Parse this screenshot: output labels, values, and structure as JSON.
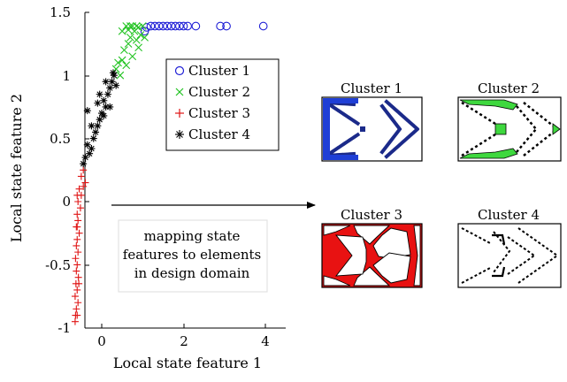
{
  "chart_data": {
    "type": "scatter",
    "xlabel": "Local state feature 1",
    "ylabel": "Local state feature 2",
    "xlim": [
      -1,
      4.4
    ],
    "ylim": [
      -1,
      1.5
    ],
    "xticks": [
      "0",
      "2",
      "4"
    ],
    "yticks": [
      "1.5",
      "1",
      "0.5",
      "0",
      "-0.5",
      "-1"
    ],
    "grid": false,
    "legend": "top-right",
    "series": [
      {
        "name": "Cluster 1",
        "marker": "circle",
        "color": "#1f1fd6",
        "points": [
          [
            1.05,
            1.35
          ],
          [
            1.1,
            1.38
          ],
          [
            1.2,
            1.39
          ],
          [
            1.3,
            1.39
          ],
          [
            1.4,
            1.39
          ],
          [
            1.5,
            1.39
          ],
          [
            1.6,
            1.39
          ],
          [
            1.7,
            1.39
          ],
          [
            1.8,
            1.39
          ],
          [
            1.9,
            1.39
          ],
          [
            2.0,
            1.39
          ],
          [
            2.1,
            1.39
          ],
          [
            2.3,
            1.39
          ],
          [
            2.9,
            1.39
          ],
          [
            3.05,
            1.39
          ],
          [
            3.95,
            1.39
          ]
        ]
      },
      {
        "name": "Cluster 2",
        "marker": "x",
        "color": "#22c322",
        "points": [
          [
            0.35,
            1.05
          ],
          [
            0.4,
            1.1
          ],
          [
            0.45,
            1.0
          ],
          [
            0.5,
            1.12
          ],
          [
            0.55,
            1.2
          ],
          [
            0.6,
            1.08
          ],
          [
            0.65,
            1.25
          ],
          [
            0.7,
            1.3
          ],
          [
            0.75,
            1.15
          ],
          [
            0.8,
            1.35
          ],
          [
            0.85,
            1.28
          ],
          [
            0.9,
            1.38
          ],
          [
            0.95,
            1.32
          ],
          [
            1.0,
            1.39
          ],
          [
            1.05,
            1.3
          ],
          [
            0.6,
            1.39
          ],
          [
            0.7,
            1.39
          ],
          [
            0.85,
            1.39
          ],
          [
            0.5,
            1.35
          ],
          [
            0.65,
            1.36
          ],
          [
            0.9,
            1.22
          ],
          [
            0.75,
            1.39
          ]
        ]
      },
      {
        "name": "Cluster 3",
        "marker": "plus",
        "color": "#e01515",
        "points": [
          [
            -0.65,
            -0.95
          ],
          [
            -0.6,
            -0.9
          ],
          [
            -0.62,
            -0.85
          ],
          [
            -0.58,
            -0.8
          ],
          [
            -0.65,
            -0.75
          ],
          [
            -0.6,
            -0.7
          ],
          [
            -0.63,
            -0.65
          ],
          [
            -0.57,
            -0.6
          ],
          [
            -0.62,
            -0.55
          ],
          [
            -0.6,
            -0.5
          ],
          [
            -0.64,
            -0.45
          ],
          [
            -0.58,
            -0.4
          ],
          [
            -0.62,
            -0.35
          ],
          [
            -0.6,
            -0.3
          ],
          [
            -0.55,
            -0.25
          ],
          [
            -0.62,
            -0.2
          ],
          [
            -0.58,
            -0.15
          ],
          [
            -0.6,
            -0.1
          ],
          [
            -0.52,
            -0.05
          ],
          [
            -0.58,
            0.0
          ],
          [
            -0.5,
            0.05
          ],
          [
            -0.55,
            0.1
          ],
          [
            -0.45,
            0.12
          ],
          [
            -0.4,
            0.15
          ],
          [
            -0.5,
            0.2
          ],
          [
            -0.45,
            0.25
          ],
          [
            -0.6,
            0.05
          ],
          [
            -0.64,
            -0.9
          ],
          [
            -0.56,
            -0.65
          ],
          [
            -0.6,
            -0.2
          ]
        ]
      },
      {
        "name": "Cluster 4",
        "marker": "asterisk",
        "color": "#000000",
        "points": [
          [
            -0.45,
            0.3
          ],
          [
            -0.4,
            0.35
          ],
          [
            -0.3,
            0.38
          ],
          [
            -0.35,
            0.45
          ],
          [
            -0.25,
            0.42
          ],
          [
            -0.2,
            0.5
          ],
          [
            -0.15,
            0.55
          ],
          [
            -0.25,
            0.6
          ],
          [
            -0.1,
            0.6
          ],
          [
            -0.05,
            0.65
          ],
          [
            0.0,
            0.7
          ],
          [
            0.05,
            0.68
          ],
          [
            0.1,
            0.75
          ],
          [
            -0.35,
            0.72
          ],
          [
            0.05,
            0.8
          ],
          [
            0.15,
            0.85
          ],
          [
            0.2,
            0.9
          ],
          [
            0.25,
            0.95
          ],
          [
            0.1,
            0.95
          ],
          [
            0.3,
            1.0
          ],
          [
            0.35,
            0.92
          ],
          [
            -0.05,
            0.85
          ],
          [
            0.2,
            0.75
          ],
          [
            -0.1,
            0.78
          ],
          [
            0.28,
            1.02
          ]
        ]
      }
    ]
  },
  "panels": [
    {
      "title": "Cluster 1"
    },
    {
      "title": "Cluster 2"
    },
    {
      "title": "Cluster 3"
    },
    {
      "title": "Cluster 4"
    }
  ],
  "annotation": {
    "line1": "mapping state",
    "line2": "features to elements",
    "line3": "in design domain"
  }
}
